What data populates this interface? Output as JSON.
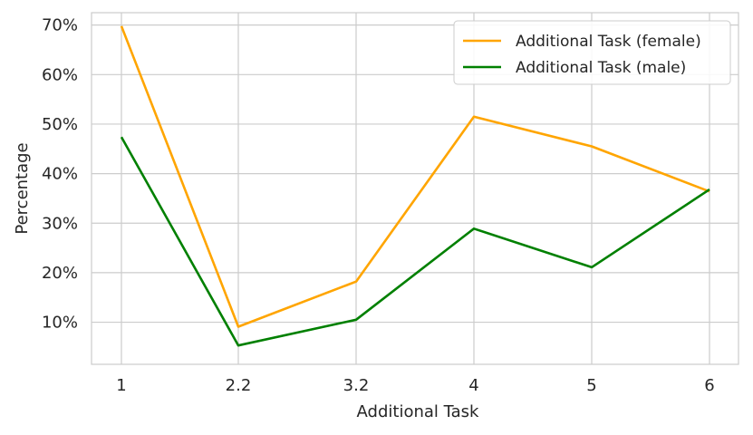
{
  "chart_data": {
    "type": "line",
    "categories": [
      "1",
      "2.2",
      "3.2",
      "4",
      "5",
      "6"
    ],
    "series": [
      {
        "name": "Additional Task (female)",
        "color": "#FFA500",
        "values": [
          69.8,
          9.1,
          18.2,
          51.5,
          45.5,
          36.4
        ]
      },
      {
        "name": "Additional Task (male)",
        "color": "#008000",
        "values": [
          47.4,
          5.3,
          10.5,
          28.9,
          21.1,
          36.8
        ]
      }
    ],
    "xlabel": "Additional Task",
    "ylabel": "Percentage",
    "yticks": [
      10,
      20,
      30,
      40,
      50,
      60,
      70
    ],
    "ytick_labels": [
      "10%",
      "20%",
      "30%",
      "40%",
      "50%",
      "60%",
      "70%"
    ],
    "ylim": [
      1.5,
      72.5
    ],
    "grid": true,
    "legend_position": "top-right"
  }
}
